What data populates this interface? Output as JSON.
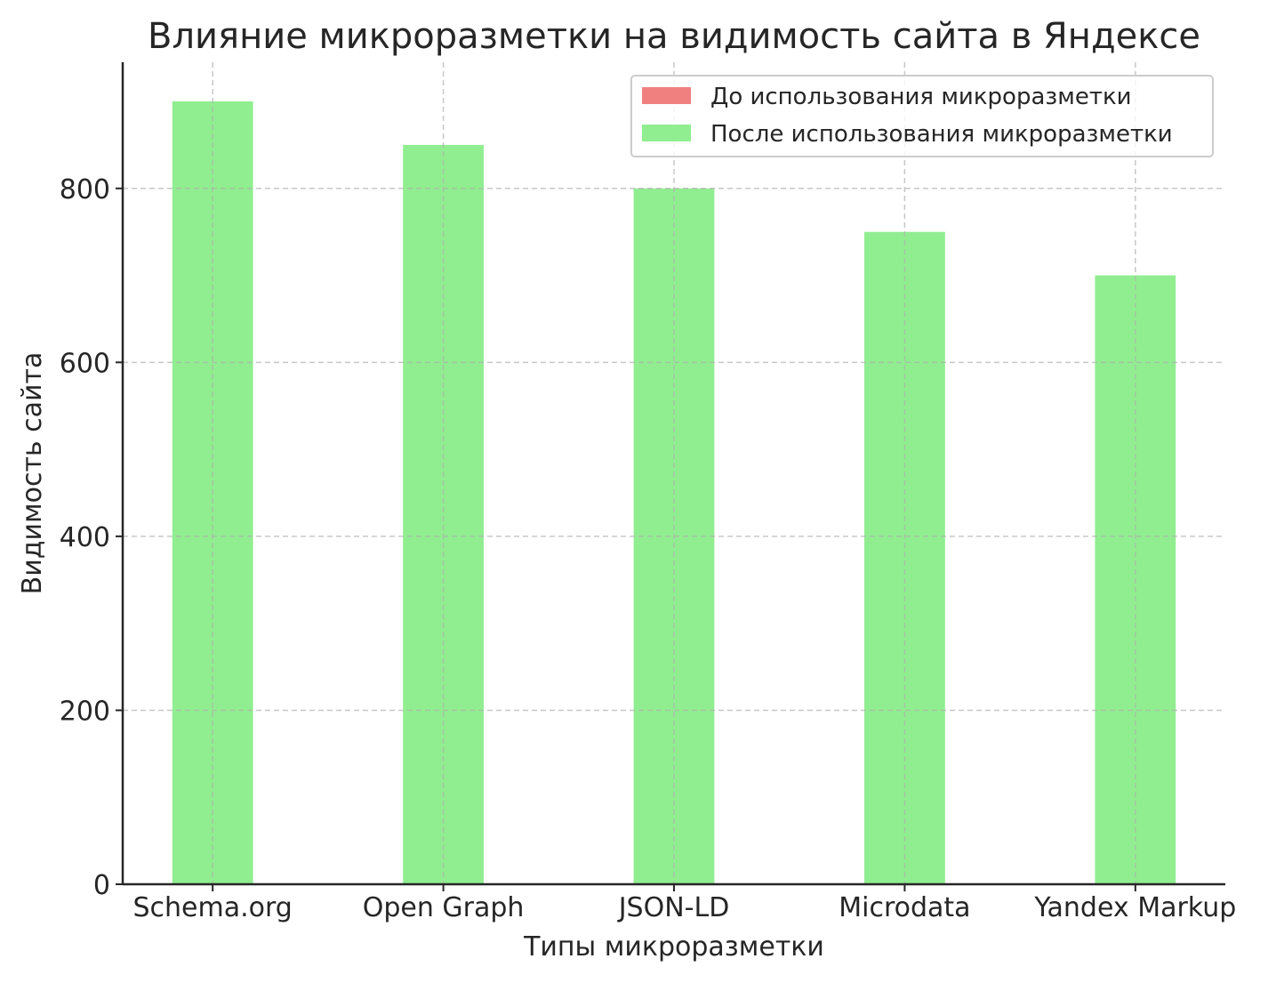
{
  "chart_data": {
    "type": "bar",
    "title": "Влияние микроразметки на видимость сайта в Яндексе",
    "xlabel": "Типы микроразметки",
    "ylabel": "Видимость сайта",
    "categories": [
      "Schema.org",
      "Open Graph",
      "JSON-LD",
      "Microdata",
      "Yandex Markup"
    ],
    "series": [
      {
        "name": "До использования микроразметки",
        "color": "#f08080",
        "values": [
          null,
          null,
          null,
          null,
          null
        ]
      },
      {
        "name": "После использования микроразметки",
        "color": "#90ee90",
        "values": [
          900,
          850,
          800,
          750,
          700
        ]
      }
    ],
    "ylim": [
      0,
      945
    ],
    "yticks": [
      0,
      200,
      400,
      600,
      800
    ],
    "grid": true,
    "legend": "top-right"
  }
}
